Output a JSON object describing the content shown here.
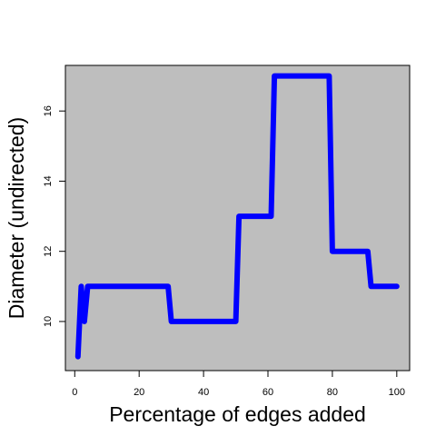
{
  "chart_data": {
    "type": "line",
    "title": "",
    "xlabel": "Percentage of edges added",
    "ylabel": "Diameter (undirected)",
    "xlim": [
      -2.9,
      104
    ],
    "ylim": [
      8.6,
      17.3
    ],
    "x_ticks": [
      0,
      20,
      40,
      60,
      80,
      100
    ],
    "y_ticks": [
      10,
      12,
      14,
      16
    ],
    "x_tick_labels": [
      "0",
      "20",
      "40",
      "60",
      "80",
      "100"
    ],
    "y_tick_labels": [
      "10",
      "12",
      "14",
      "16"
    ],
    "plot_background": "#bebebe",
    "grid": false,
    "legend": "none",
    "series": [
      {
        "color": "#0000ff",
        "x": [
          1,
          2,
          3,
          4,
          29,
          30,
          50,
          51,
          61,
          62,
          79,
          80,
          91,
          92,
          100
        ],
        "y": [
          9,
          11,
          10,
          11,
          11,
          10,
          10,
          13,
          13,
          17,
          17,
          12,
          12,
          11,
          11
        ]
      }
    ]
  }
}
